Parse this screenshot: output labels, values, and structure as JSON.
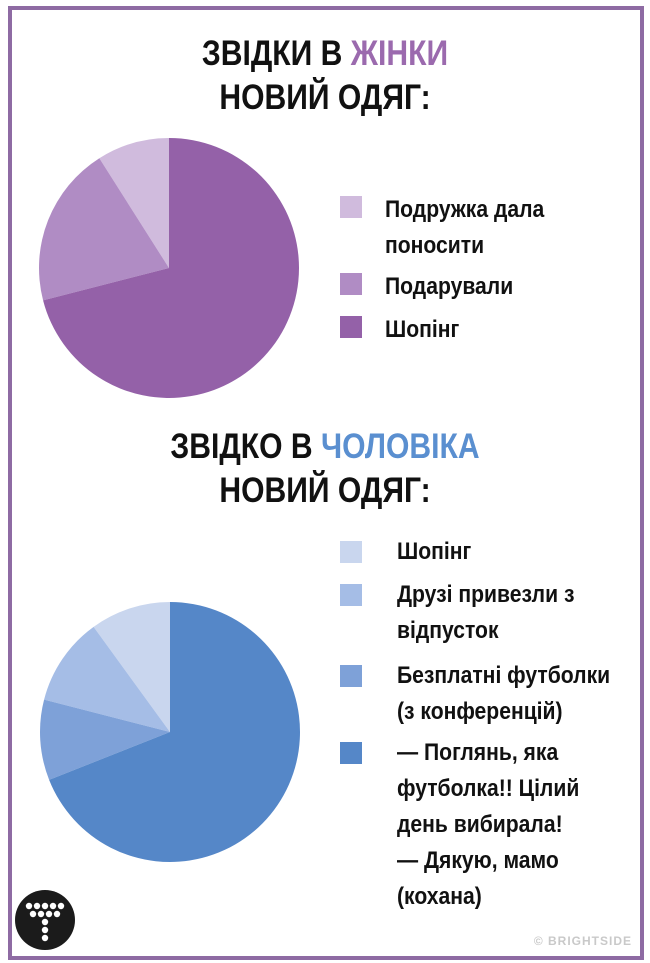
{
  "chart_data": [
    {
      "type": "pie",
      "title": {
        "part1": "ЗВІДКИ В ",
        "accent": "ЖІНКИ",
        "line2": "НОВИЙ ОДЯГ:"
      },
      "series": [
        {
          "name": "Подружка дала\nпоносити",
          "value": 9,
          "color": "#d0bbdd"
        },
        {
          "name": "Подарували",
          "value": 20,
          "color": "#b08cc4"
        },
        {
          "name": "Шопінг",
          "value": 71,
          "color": "#9461a8"
        }
      ]
    },
    {
      "type": "pie",
      "title": {
        "part1": "ЗВІДКО В ",
        "accent": "ЧОЛОВІКА",
        "line2": "НОВИЙ ОДЯГ:"
      },
      "series": [
        {
          "name": "Шопінг",
          "value": 10,
          "color": "#c9d6ee"
        },
        {
          "name": "Друзі привезли з\nвідпусток",
          "value": 11,
          "color": "#a5bde6"
        },
        {
          "name": "Безплатні футболки\n(з конференцій)",
          "value": 10,
          "color": "#7ea1d8"
        },
        {
          "name": "— Поглянь, яка\nфутболка!! Цілий\nдень вибирала!\n— Дякую, мамо\n(кохана)",
          "value": 69,
          "color": "#5587c8"
        }
      ]
    }
  ],
  "credit": "© BRIGHTSIDE",
  "logo_icon": "bright-side-t-logo-icon"
}
